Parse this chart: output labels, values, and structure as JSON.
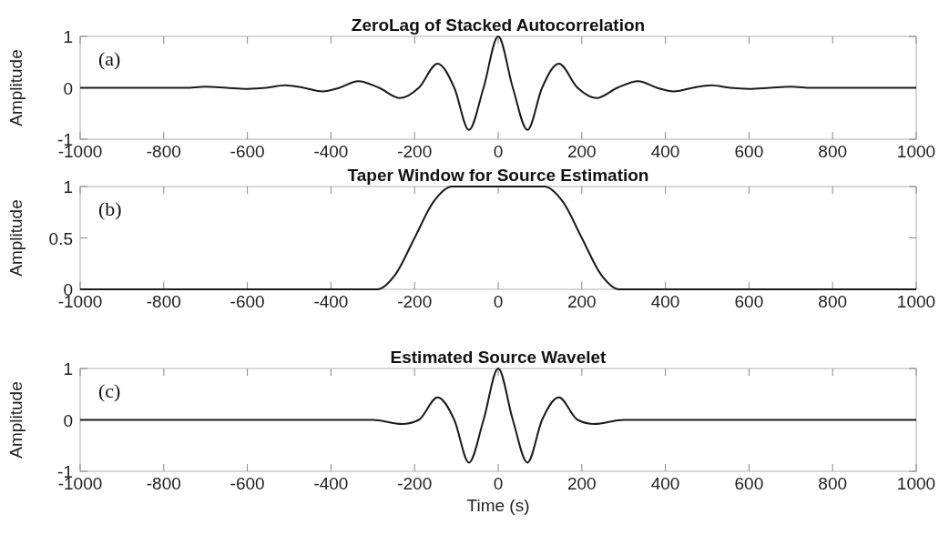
{
  "chart_data": [
    {
      "type": "line",
      "title": "ZeroLag of Stacked Autocorrelation",
      "ylabel": "Amplitude",
      "annotations": [
        "(a)"
      ],
      "xlim": [
        -1000,
        1000
      ],
      "xticks": [
        -1000,
        -800,
        -600,
        -400,
        -200,
        0,
        200,
        400,
        600,
        800,
        1000
      ],
      "ylim": [
        -1,
        1
      ],
      "yticks": [
        -1,
        0,
        1
      ],
      "series": [
        {
          "color": "#1a1a1a",
          "x": [
            -1000,
            -900,
            -800,
            -750,
            -700,
            -650,
            -600,
            -555,
            -510,
            -465,
            -420,
            -380,
            -335,
            -285,
            -235,
            -190,
            -145,
            -105,
            -70,
            -35,
            0,
            35,
            70,
            105,
            145,
            190,
            235,
            285,
            335,
            380,
            420,
            465,
            510,
            555,
            600,
            650,
            700,
            750,
            800,
            900,
            1000
          ],
          "values": [
            0,
            0,
            0,
            0,
            0.02,
            0,
            -0.02,
            0,
            0.05,
            0,
            -0.07,
            0,
            0.13,
            0,
            -0.2,
            0,
            0.47,
            0,
            -0.82,
            0,
            1,
            0,
            -0.82,
            0,
            0.47,
            0,
            -0.2,
            0,
            0.13,
            0,
            -0.07,
            0,
            0.05,
            0,
            -0.02,
            0,
            0.02,
            0,
            0,
            0,
            0
          ]
        }
      ]
    },
    {
      "type": "line",
      "title": "Taper Window for Source Estimation",
      "ylabel": "Amplitude",
      "annotations": [
        "(b)"
      ],
      "xlim": [
        -1000,
        1000
      ],
      "xticks": [
        -1000,
        -800,
        -600,
        -400,
        -200,
        0,
        200,
        400,
        600,
        800,
        1000
      ],
      "ylim": [
        0,
        1
      ],
      "yticks": [
        0,
        0.5,
        1
      ],
      "series": [
        {
          "color": "#1a1a1a",
          "x": [
            -1000,
            -290,
            -245,
            -200,
            -155,
            -110,
            0,
            110,
            155,
            200,
            245,
            290,
            1000
          ],
          "values": [
            0,
            0,
            0.15,
            0.5,
            0.85,
            1,
            1,
            1,
            0.85,
            0.5,
            0.15,
            0,
            0
          ]
        }
      ]
    },
    {
      "type": "line",
      "title": "Estimated Source Wavelet",
      "xlabel": "Time (s)",
      "ylabel": "Amplitude",
      "annotations": [
        "(c)"
      ],
      "xlim": [
        -1000,
        1000
      ],
      "xticks": [
        -1000,
        -800,
        -600,
        -400,
        -200,
        0,
        200,
        400,
        600,
        800,
        1000
      ],
      "ylim": [
        -1,
        1
      ],
      "yticks": [
        -1,
        0,
        1
      ],
      "series": [
        {
          "color": "#1a1a1a",
          "x": [
            -1000,
            -300,
            -230,
            -190,
            -145,
            -105,
            -70,
            -35,
            0,
            35,
            70,
            105,
            145,
            190,
            230,
            300,
            1000
          ],
          "values": [
            0,
            0,
            -0.08,
            0,
            0.44,
            0,
            -0.83,
            0,
            1,
            0,
            -0.83,
            0,
            0.44,
            0,
            -0.08,
            0,
            0
          ]
        }
      ]
    }
  ]
}
